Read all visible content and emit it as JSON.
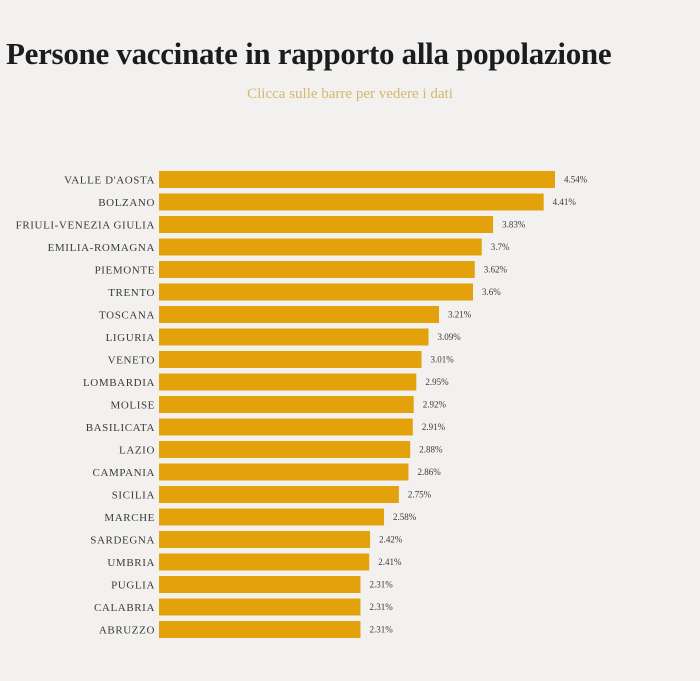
{
  "chart_data": {
    "type": "bar",
    "orientation": "horizontal",
    "title": "Persone vaccinate in rapporto alla popolazione",
    "subtitle": "Clicca sulle barre per vedere i dati",
    "categories": [
      "VALLE D'AOSTA",
      "BOLZANO",
      "FRIULI-VENEZIA GIULIA",
      "EMILIA-ROMAGNA",
      "PIEMONTE",
      "TRENTO",
      "TOSCANA",
      "LIGURIA",
      "VENETO",
      "LOMBARDIA",
      "MOLISE",
      "BASILICATA",
      "LAZIO",
      "CAMPANIA",
      "SICILIA",
      "MARCHE",
      "SARDEGNA",
      "UMBRIA",
      "PUGLIA",
      "CALABRIA",
      "ABRUZZO"
    ],
    "values": [
      4.54,
      4.41,
      3.83,
      3.7,
      3.62,
      3.6,
      3.21,
      3.09,
      3.01,
      2.95,
      2.92,
      2.91,
      2.88,
      2.86,
      2.75,
      2.58,
      2.42,
      2.41,
      2.31,
      2.31,
      2.31
    ],
    "value_labels": [
      "4.54%",
      "4.41%",
      "3.83%",
      "3.7%",
      "3.62%",
      "3.6%",
      "3.21%",
      "3.09%",
      "3.01%",
      "2.95%",
      "2.92%",
      "2.91%",
      "2.88%",
      "2.86%",
      "2.75%",
      "2.58%",
      "2.42%",
      "2.41%",
      "2.31%",
      "2.31%",
      "2.31%"
    ],
    "grid": false,
    "bar_color": "#e3a20b"
  }
}
